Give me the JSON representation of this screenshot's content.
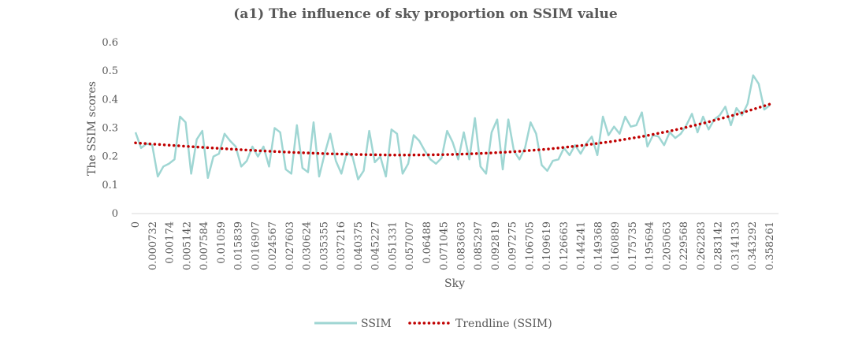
{
  "chart_data": {
    "type": "line",
    "title": "(a1) The influence of sky proportion on SSIM value",
    "xlabel": "Sky",
    "ylabel": "The SSIM scores",
    "ylim": [
      0,
      0.6
    ],
    "yticks": [
      "0",
      "0.1",
      "0.2",
      "0.3",
      "0.4",
      "0.5",
      "0.6"
    ],
    "x_tick_labels": [
      "0",
      "0.000732",
      "0.00174",
      "0.005142",
      "0.007584",
      "0.01059",
      "0.015839",
      "0.016907",
      "0.024567",
      "0.027603",
      "0.030624",
      "0.035355",
      "0.037216",
      "0.040375",
      "0.045227",
      "0.051331",
      "0.057007",
      "0.06488",
      "0.071045",
      "0.083603",
      "0.085297",
      "0.092819",
      "0.097275",
      "0.106705",
      "0.109619",
      "0.126663",
      "0.144241",
      "0.149368",
      "0.160889",
      "0.175735",
      "0.195694",
      "0.205063",
      "0.229568",
      "0.262283",
      "0.283142",
      "0.314133",
      "0.343292",
      "0.358261"
    ],
    "grid": false,
    "legend_position": "bottom",
    "series": [
      {
        "name": "SSIM",
        "color": "#9fd6d3",
        "values": [
          0.285,
          0.23,
          0.245,
          0.24,
          0.13,
          0.165,
          0.175,
          0.19,
          0.34,
          0.32,
          0.14,
          0.26,
          0.29,
          0.125,
          0.2,
          0.21,
          0.28,
          0.255,
          0.235,
          0.165,
          0.185,
          0.235,
          0.2,
          0.235,
          0.165,
          0.3,
          0.285,
          0.155,
          0.14,
          0.31,
          0.16,
          0.145,
          0.32,
          0.13,
          0.21,
          0.28,
          0.185,
          0.14,
          0.215,
          0.2,
          0.12,
          0.15,
          0.29,
          0.18,
          0.2,
          0.13,
          0.295,
          0.28,
          0.14,
          0.175,
          0.275,
          0.255,
          0.22,
          0.19,
          0.175,
          0.195,
          0.29,
          0.25,
          0.19,
          0.285,
          0.19,
          0.335,
          0.165,
          0.14,
          0.285,
          0.33,
          0.155,
          0.33,
          0.22,
          0.19,
          0.23,
          0.32,
          0.28,
          0.17,
          0.15,
          0.185,
          0.19,
          0.23,
          0.205,
          0.24,
          0.21,
          0.245,
          0.27,
          0.205,
          0.34,
          0.275,
          0.305,
          0.28,
          0.34,
          0.305,
          0.31,
          0.355,
          0.235,
          0.275,
          0.27,
          0.24,
          0.285,
          0.265,
          0.28,
          0.31,
          0.35,
          0.285,
          0.34,
          0.295,
          0.33,
          0.345,
          0.375,
          0.31,
          0.37,
          0.345,
          0.385,
          0.485,
          0.455,
          0.365,
          0.38
        ]
      },
      {
        "name": "Trendline (SSIM)",
        "color": "#c00000",
        "style": "dotted",
        "values": [
          0.248,
          0.2403,
          0.233,
          0.2261,
          0.2198,
          0.2144,
          0.2101,
          0.2072,
          0.2054,
          0.2055,
          0.2074,
          0.2114,
          0.2175,
          0.2262,
          0.2379,
          0.2525,
          0.2708,
          0.2929,
          0.3196,
          0.3495,
          0.3839
        ]
      }
    ]
  }
}
